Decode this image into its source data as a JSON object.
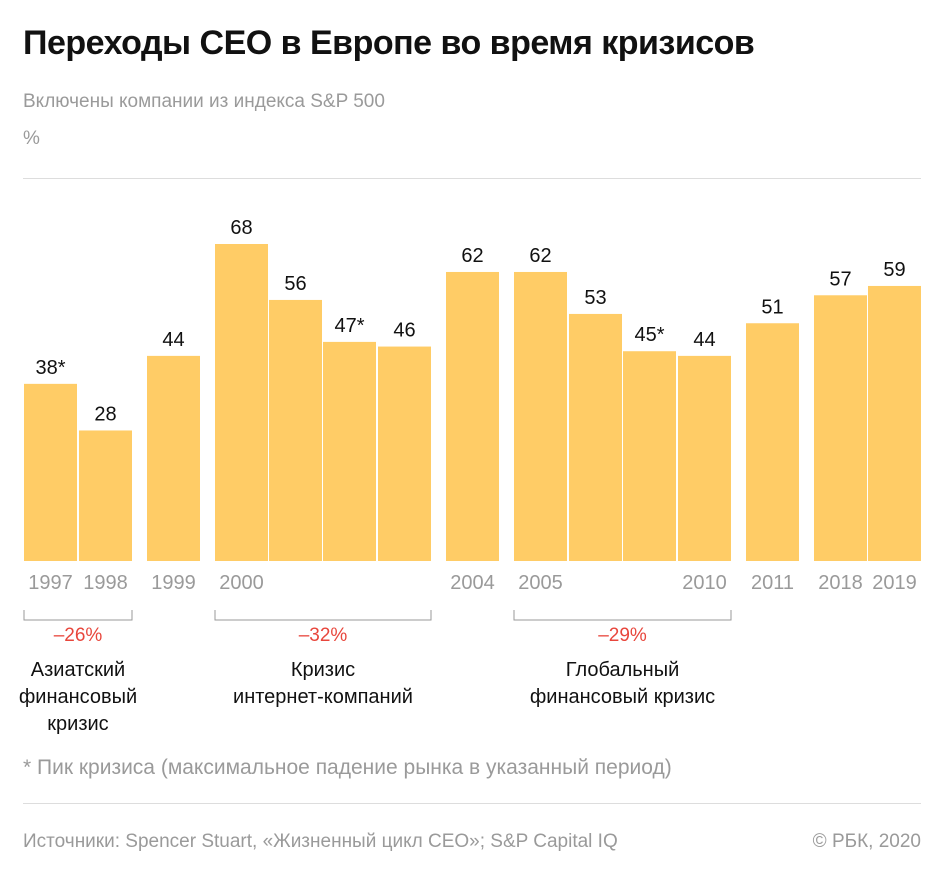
{
  "title": "Переходы CEO в Европе во время кризисов",
  "subtitle": "Включены компании из индекса S&P 500",
  "unit": "%",
  "footnote": "* Пик кризиса (максимальное падение рынка в указанный период)",
  "source": "Источники: Spencer Stuart, «Жизненный цикл CEO»; S&P Capital IQ",
  "copyright": "©  РБК, 2020",
  "colors": {
    "bar": "#FFCC66",
    "tick": "#9a9a9a",
    "change": "#E8463C",
    "bracket": "#9a9a9a",
    "text": "#111111"
  },
  "chart_data": {
    "type": "bar",
    "ylabel": "%",
    "ylim": [
      0,
      68
    ],
    "bars": [
      {
        "value": 38,
        "label": "38*",
        "year": "1997"
      },
      {
        "value": 28,
        "label": "28",
        "year": "1998"
      },
      {
        "value": 44,
        "label": "44",
        "year": "1999"
      },
      {
        "value": 68,
        "label": "68",
        "year": "2000"
      },
      {
        "value": 56,
        "label": "56",
        "year": ""
      },
      {
        "value": 47,
        "label": "47*",
        "year": ""
      },
      {
        "value": 46,
        "label": "46",
        "year": ""
      },
      {
        "value": 62,
        "label": "62",
        "year": "2004"
      },
      {
        "value": 62,
        "label": "62",
        "year": "2005"
      },
      {
        "value": 53,
        "label": "53",
        "year": ""
      },
      {
        "value": 45,
        "label": "45*",
        "year": ""
      },
      {
        "value": 44,
        "label": "44",
        "year": "2010"
      },
      {
        "value": 51,
        "label": "51",
        "year": "2011"
      },
      {
        "value": 57,
        "label": "57",
        "year": "2018"
      },
      {
        "value": 59,
        "label": "59",
        "year": "2019"
      }
    ],
    "crises": [
      {
        "from": 0,
        "to": 1,
        "change": "–26%",
        "label": [
          "Азиатский",
          "финансовый",
          "кризис"
        ]
      },
      {
        "from": 3,
        "to": 6,
        "change": "–32%",
        "label": [
          "Кризис",
          "интернет-компаний"
        ]
      },
      {
        "from": 8,
        "to": 11,
        "change": "–29%",
        "label": [
          "Глобальный",
          "финансовый кризис"
        ]
      }
    ]
  }
}
